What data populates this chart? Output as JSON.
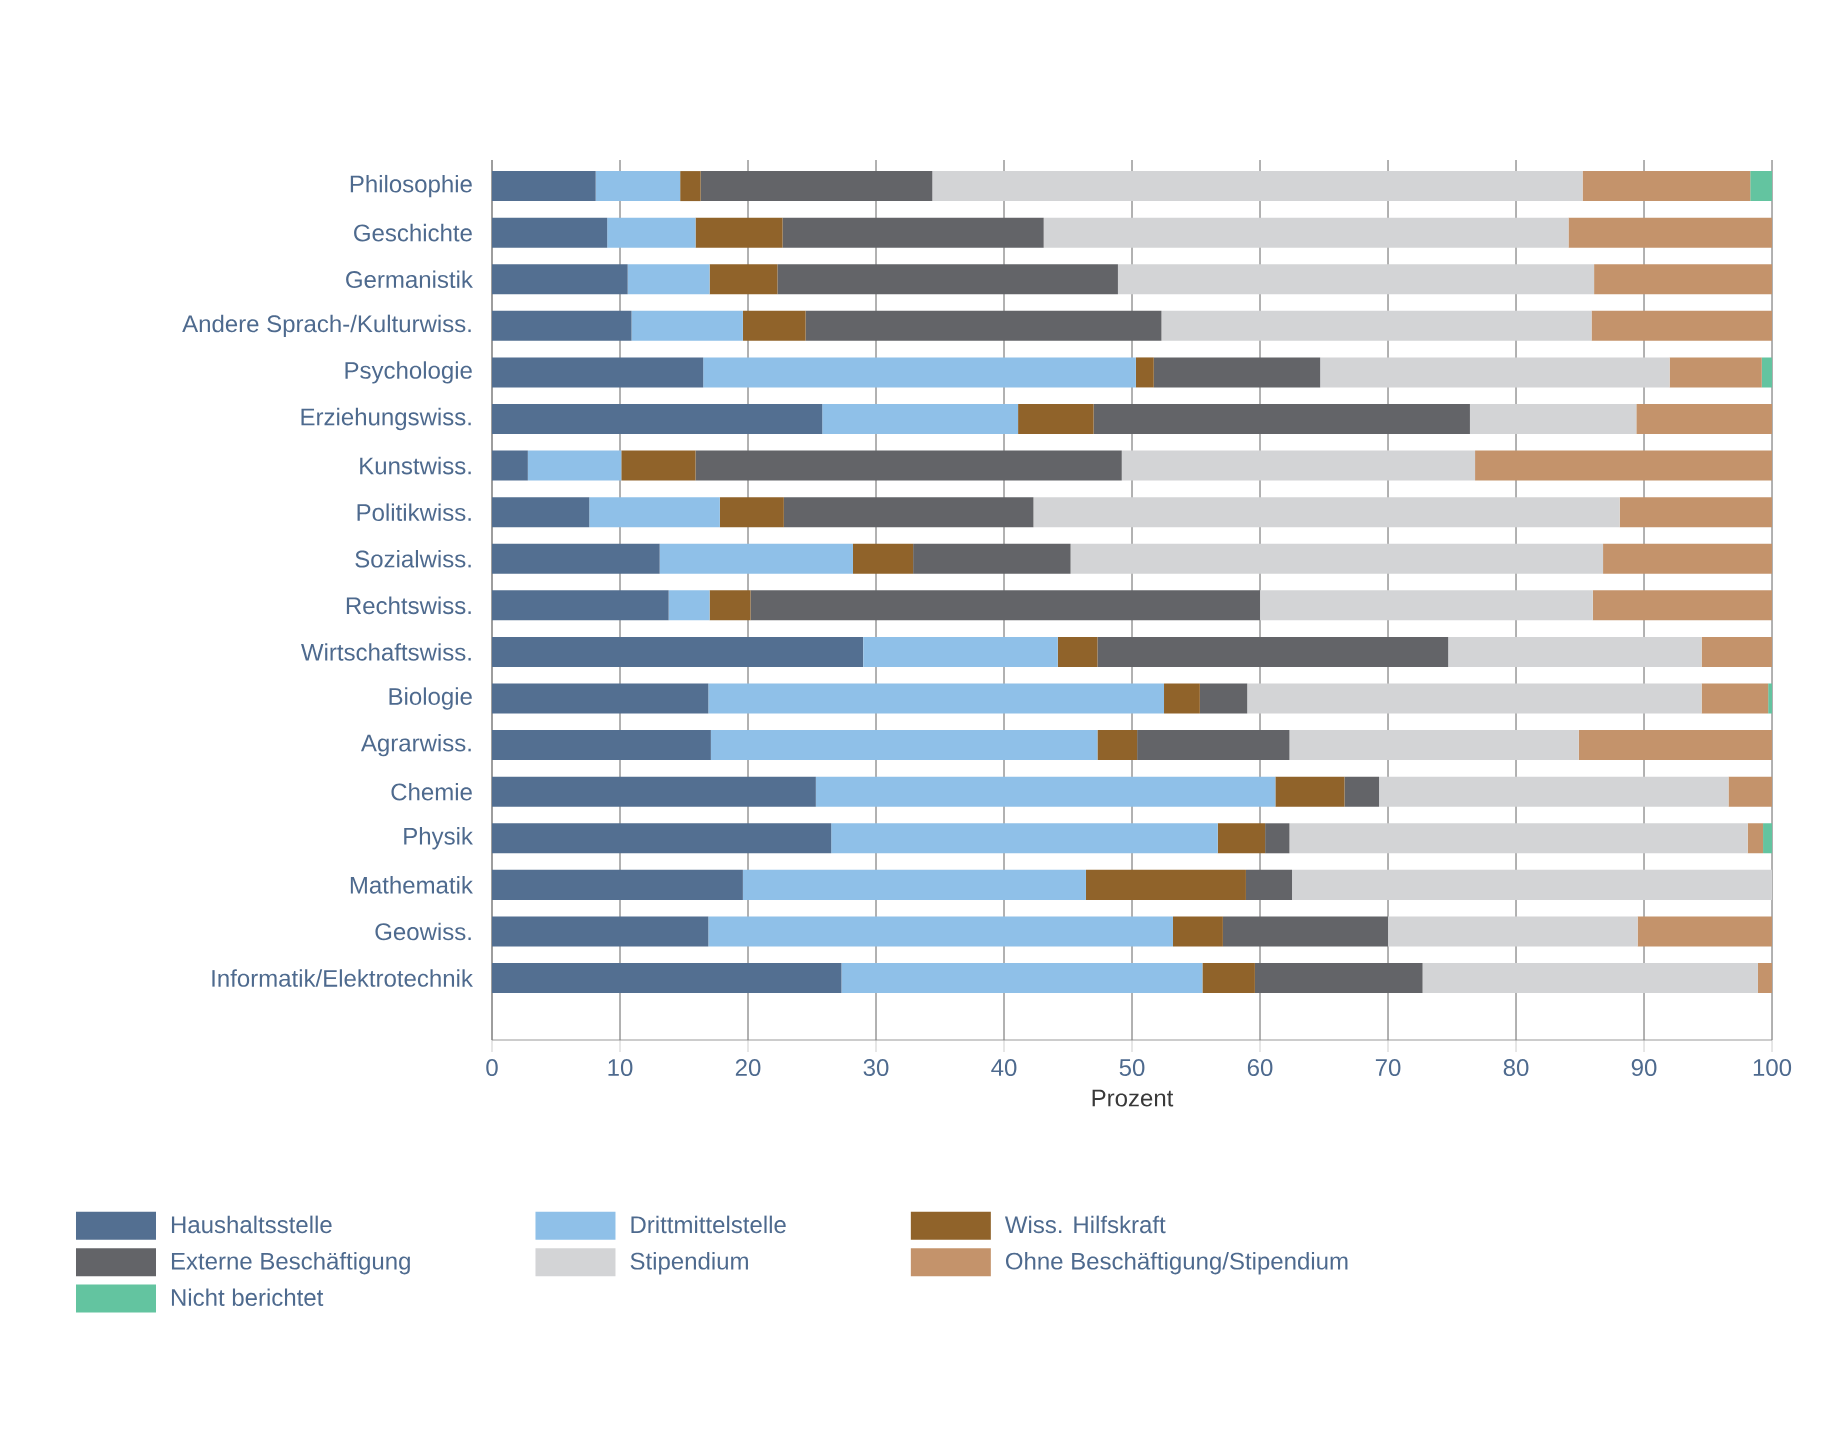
{
  "chart_data": {
    "type": "bar",
    "orientation": "horizontal",
    "stacked": true,
    "xlabel": "Prozent",
    "xlim": [
      0,
      100
    ],
    "xticks": [
      0,
      10,
      20,
      30,
      40,
      50,
      60,
      70,
      80,
      90,
      100
    ],
    "grid": "x",
    "legend": "bottom",
    "categories": [
      "Philosophie",
      "Geschichte",
      "Germanistik",
      "Andere Sprach-/Kulturwiss.",
      "Psychologie",
      "Erziehungswiss.",
      "Kunstwiss.",
      "Politikwiss.",
      "Sozialwiss.",
      "Rechtswiss.",
      "Wirtschaftswiss.",
      "Biologie",
      "Agrarwiss.",
      "Chemie",
      "Physik",
      "Mathematik",
      "Geowiss.",
      "Informatik/Elektrotechnik"
    ],
    "series": [
      {
        "name": "Haushaltsstelle",
        "color": "#536f91",
        "values": [
          8.1,
          9.0,
          10.6,
          10.9,
          16.5,
          25.8,
          2.8,
          7.6,
          13.1,
          13.8,
          29.0,
          16.9,
          17.1,
          25.3,
          26.5,
          19.6,
          16.9,
          27.3
        ]
      },
      {
        "name": "Drittmittelstelle",
        "color": "#8fc0e8",
        "values": [
          6.6,
          6.9,
          6.4,
          8.7,
          33.8,
          15.3,
          7.3,
          10.2,
          15.1,
          3.2,
          15.2,
          35.6,
          30.2,
          35.9,
          30.2,
          26.8,
          36.3,
          28.2
        ]
      },
      {
        "name": "Wiss. Hilfskraft",
        "color": "#90632a",
        "values": [
          1.6,
          6.8,
          5.3,
          4.9,
          1.4,
          5.9,
          5.8,
          5.0,
          4.7,
          3.2,
          3.1,
          2.8,
          3.1,
          5.4,
          3.7,
          12.5,
          3.9,
          4.1
        ]
      },
      {
        "name": "Externe Beschäftigung",
        "color": "#636468",
        "values": [
          18.1,
          20.4,
          26.6,
          27.8,
          13.0,
          29.4,
          33.3,
          19.5,
          12.3,
          39.8,
          27.4,
          3.7,
          11.9,
          2.7,
          1.9,
          3.6,
          12.9,
          13.1
        ]
      },
      {
        "name": "Stipendium",
        "color": "#d3d4d6",
        "values": [
          50.8,
          41.0,
          37.2,
          33.6,
          27.3,
          13.0,
          27.6,
          45.8,
          41.6,
          26.0,
          19.8,
          35.5,
          22.6,
          27.3,
          35.8,
          37.5,
          19.5,
          26.2
        ]
      },
      {
        "name": "Ohne Beschäftigung/Stipendium",
        "color": "#c4936b",
        "values": [
          13.1,
          15.9,
          13.9,
          14.1,
          7.2,
          10.6,
          23.2,
          11.9,
          13.2,
          14.0,
          5.5,
          5.2,
          15.1,
          3.4,
          1.2,
          0,
          10.5,
          1.1
        ]
      },
      {
        "name": "Nicht berichtet",
        "color": "#63c4a0",
        "values": [
          1.7,
          0,
          0,
          0,
          0.8,
          0,
          0,
          0,
          0,
          0,
          0,
          0.3,
          0,
          0,
          0.7,
          0,
          0,
          0
        ]
      }
    ]
  }
}
